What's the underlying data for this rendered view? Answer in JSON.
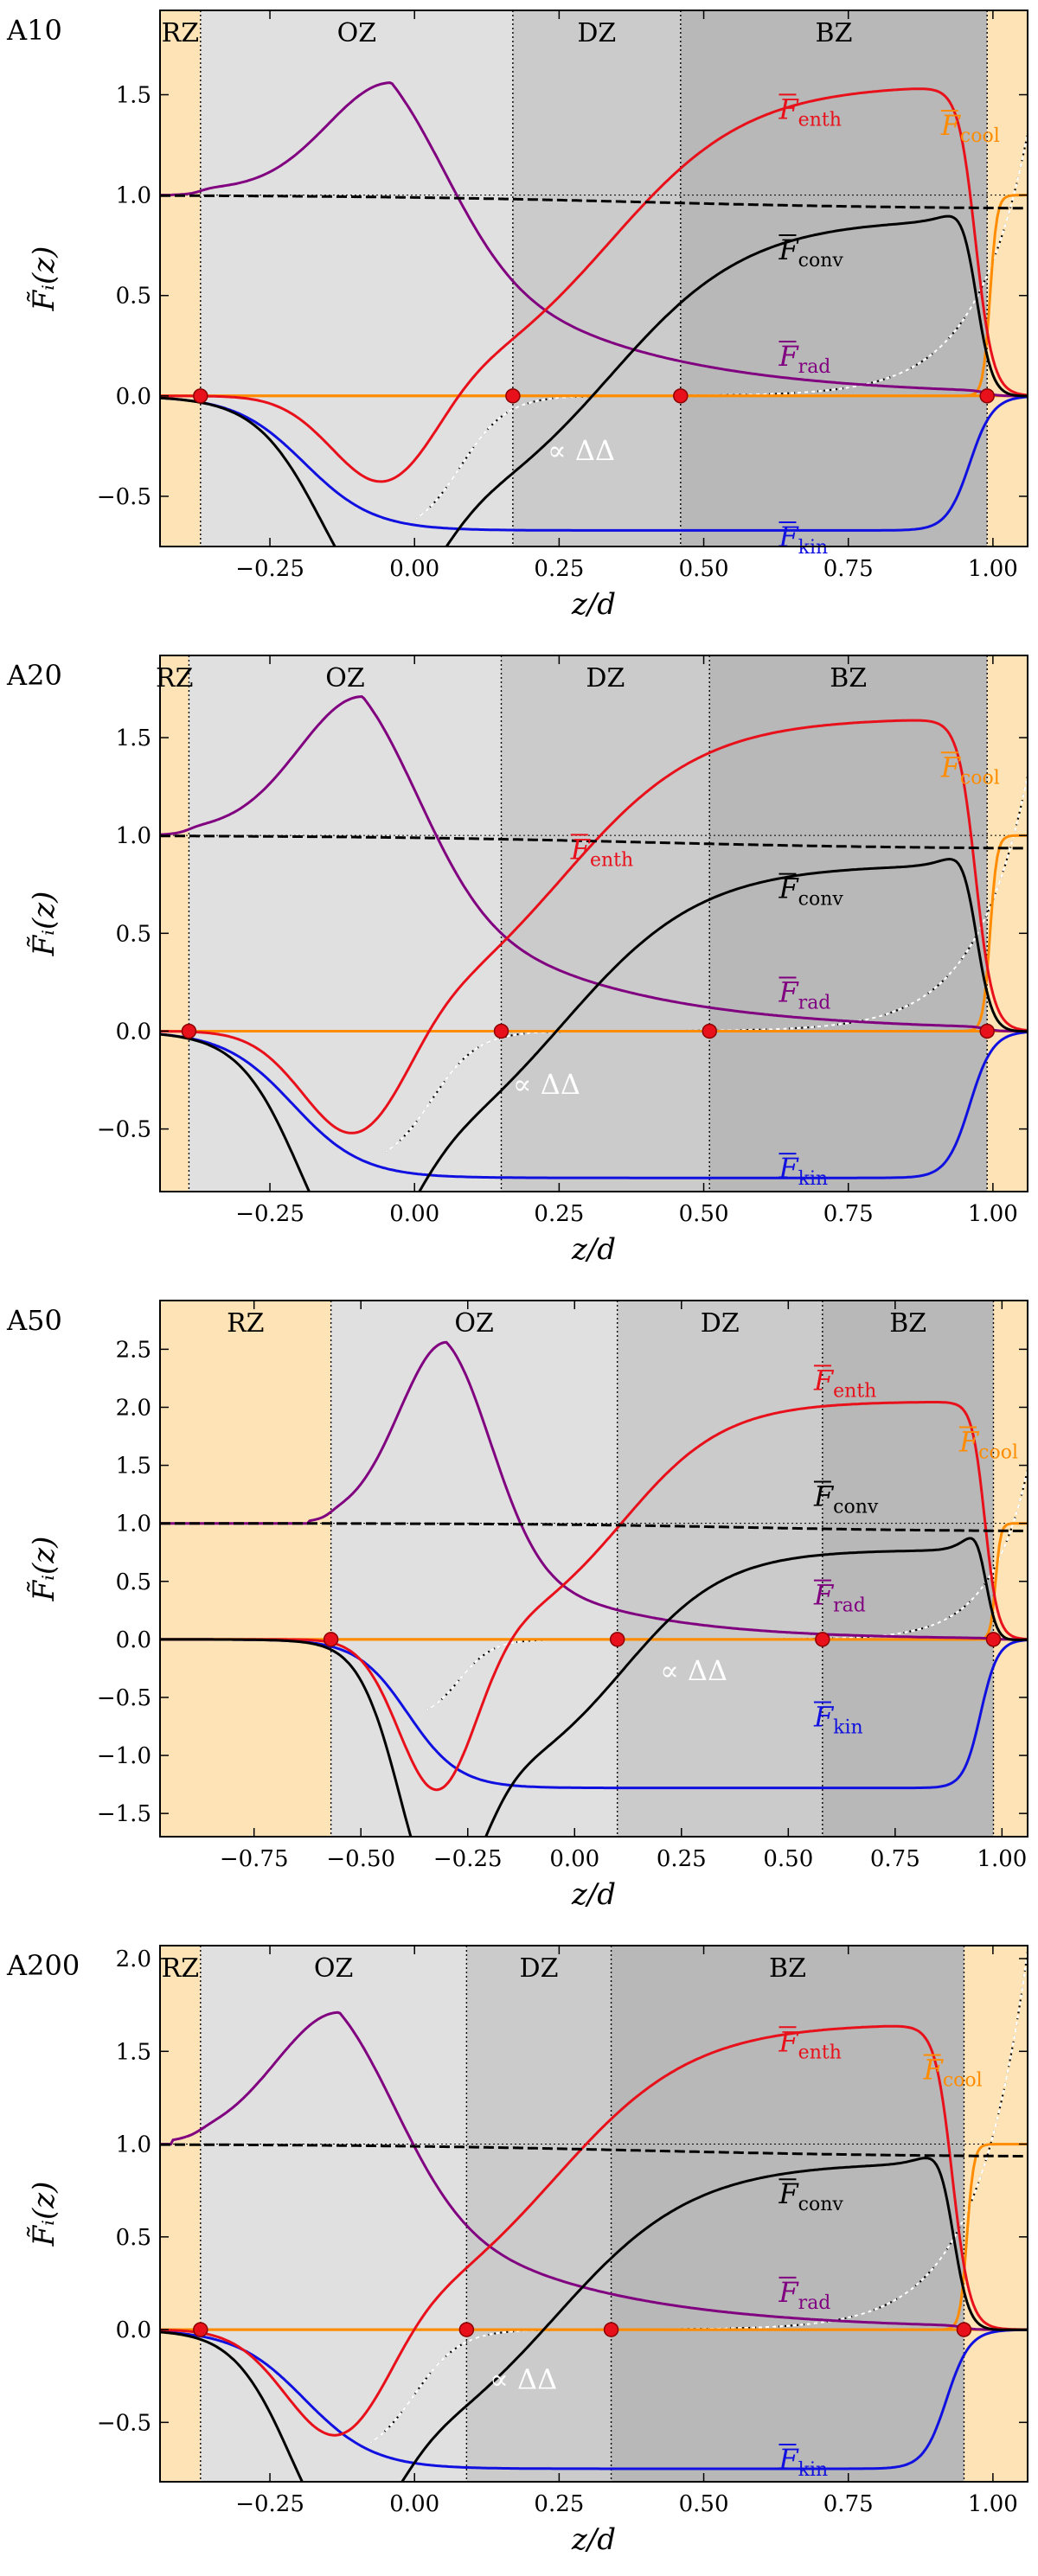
{
  "figure": {
    "ylabel": "F̃ᵢ(z)",
    "xlabel": "z/d",
    "colors": {
      "rz": "#fde3b5",
      "oz": "#e0e0e0",
      "dz": "#cbcbcb",
      "bz": "#b8b8b8",
      "rad": "#800080",
      "enth": "#e8101a",
      "conv": "#000000",
      "kin": "#1010e0",
      "cool": "#ff8c00",
      "total": "#000000",
      "nabla": "#ffffff",
      "marker": "#e8101a"
    }
  },
  "chart_data": [
    {
      "type": "line",
      "panel": "A10",
      "xlim": [
        -0.44,
        1.06
      ],
      "ylim": [
        -0.75,
        1.92
      ],
      "xticks": [
        -0.25,
        0.0,
        0.25,
        0.5,
        0.75,
        1.0
      ],
      "xtick_labels": [
        "−0.25",
        "0.00",
        "0.25",
        "0.50",
        "0.75",
        "1.00"
      ],
      "yticks": [
        -0.5,
        0.0,
        0.5,
        1.0,
        1.5
      ],
      "ytick_labels": [
        "−0.5",
        "0.0",
        "0.5",
        "1.0",
        "1.5"
      ],
      "zones": [
        {
          "name": "RZ",
          "from": -0.44,
          "to": -0.37
        },
        {
          "name": "OZ",
          "from": -0.37,
          "to": 0.17
        },
        {
          "name": "DZ",
          "from": 0.17,
          "to": 0.46
        },
        {
          "name": "BZ",
          "from": 0.46,
          "to": 0.99
        },
        {
          "name": "",
          "from": 0.99,
          "to": 1.06
        }
      ],
      "markers_x": [
        -0.37,
        0.17,
        0.46,
        0.99
      ],
      "flux_labels": [
        {
          "text": "F",
          "sub": "enth",
          "series": "enth",
          "x": 0.63,
          "y": 1.38
        },
        {
          "text": "F",
          "sub": "cool",
          "series": "cool",
          "x": 0.91,
          "y": 1.3
        },
        {
          "text": "F",
          "sub": "conv",
          "series": "conv",
          "x": 0.63,
          "y": 0.68
        },
        {
          "text": "F",
          "sub": "rad",
          "series": "rad",
          "x": 0.63,
          "y": 0.15
        },
        {
          "text": "∝ ΔΔ",
          "sub": "",
          "series": "nabla",
          "x": 0.23,
          "y": -0.32
        },
        {
          "text": "F",
          "sub": "kin",
          "series": "kin",
          "x": 0.63,
          "y": -0.75
        }
      ],
      "params": {
        "rad_peak": 1.56,
        "rad_x": -0.04,
        "rad_base": 1.03,
        "enth_peak": 1.55,
        "enth_x": 0.78,
        "neg_min": -0.45,
        "neg_x": -0.05,
        "conv_min": -0.55,
        "kin_min": -0.67,
        "kin_x": 0.64,
        "enth_zero": 0.1,
        "nabla_start": 0.0
      }
    },
    {
      "type": "line",
      "panel": "A20",
      "xlim": [
        -0.44,
        1.06
      ],
      "ylim": [
        -0.82,
        1.92
      ],
      "xticks": [
        -0.25,
        0.0,
        0.25,
        0.5,
        0.75,
        1.0
      ],
      "xtick_labels": [
        "−0.25",
        "0.00",
        "0.25",
        "0.50",
        "0.75",
        "1.00"
      ],
      "yticks": [
        -0.5,
        0.0,
        0.5,
        1.0,
        1.5
      ],
      "ytick_labels": [
        "−0.5",
        "0.0",
        "0.5",
        "1.0",
        "1.5"
      ],
      "zones": [
        {
          "name": "RZ",
          "from": -0.44,
          "to": -0.39
        },
        {
          "name": "OZ",
          "from": -0.39,
          "to": 0.15
        },
        {
          "name": "DZ",
          "from": 0.15,
          "to": 0.51
        },
        {
          "name": "BZ",
          "from": 0.51,
          "to": 0.99
        },
        {
          "name": "",
          "from": 0.99,
          "to": 1.06
        }
      ],
      "markers_x": [
        -0.39,
        0.15,
        0.51,
        0.99
      ],
      "flux_labels": [
        {
          "text": "F",
          "sub": "cool",
          "series": "cool",
          "x": 0.91,
          "y": 1.3
        },
        {
          "text": "F",
          "sub": "enth",
          "series": "enth",
          "x": 0.27,
          "y": 0.88
        },
        {
          "text": "F",
          "sub": "conv",
          "series": "conv",
          "x": 0.63,
          "y": 0.68
        },
        {
          "text": "F",
          "sub": "rad",
          "series": "rad",
          "x": 0.63,
          "y": 0.15
        },
        {
          "text": "∝ ΔΔ",
          "sub": "",
          "series": "nabla",
          "x": 0.17,
          "y": -0.32
        },
        {
          "text": "F",
          "sub": "kin",
          "series": "kin",
          "x": 0.63,
          "y": -0.75
        }
      ],
      "params": {
        "rad_peak": 1.71,
        "rad_x": -0.09,
        "rad_base": 1.03,
        "enth_peak": 1.6,
        "enth_x": 0.67,
        "neg_min": -0.55,
        "neg_x": -0.1,
        "conv_min": -0.68,
        "kin_min": -0.75,
        "kin_x": 0.57,
        "enth_zero": 0.05,
        "nabla_start": -0.05
      }
    },
    {
      "type": "line",
      "panel": "A50",
      "xlim": [
        -0.97,
        1.06
      ],
      "ylim": [
        -1.7,
        2.92
      ],
      "xticks": [
        -0.75,
        -0.5,
        -0.25,
        0.0,
        0.25,
        0.5,
        0.75,
        1.0
      ],
      "xtick_labels": [
        "−0.75",
        "−0.50",
        "−0.25",
        "0.00",
        "0.25",
        "0.50",
        "0.75",
        "1.00"
      ],
      "yticks": [
        -1.5,
        -1.0,
        -0.5,
        0.0,
        0.5,
        1.0,
        1.5,
        2.0,
        2.5
      ],
      "ytick_labels": [
        "−1.5",
        "−1.0",
        "−0.5",
        "0.0",
        "0.5",
        "1.0",
        "1.5",
        "2.0",
        "2.5"
      ],
      "zones": [
        {
          "name": "RZ",
          "from": -0.97,
          "to": -0.57
        },
        {
          "name": "OZ",
          "from": -0.57,
          "to": 0.1
        },
        {
          "name": "DZ",
          "from": 0.1,
          "to": 0.58
        },
        {
          "name": "BZ",
          "from": 0.58,
          "to": 0.98
        },
        {
          "name": "",
          "from": 0.98,
          "to": 1.06
        }
      ],
      "markers_x": [
        -0.57,
        0.1,
        0.58,
        0.98
      ],
      "flux_labels": [
        {
          "text": "F",
          "sub": "enth",
          "series": "enth",
          "x": 0.56,
          "y": 2.15
        },
        {
          "text": "F",
          "sub": "cool",
          "series": "cool",
          "x": 0.9,
          "y": 1.62
        },
        {
          "text": "F",
          "sub": "conv",
          "series": "conv",
          "x": 0.56,
          "y": 1.15
        },
        {
          "text": "F",
          "sub": "rad",
          "series": "rad",
          "x": 0.56,
          "y": 0.3
        },
        {
          "text": "∝ ΔΔ",
          "sub": "",
          "series": "nabla",
          "x": 0.2,
          "y": -0.35
        },
        {
          "text": "F",
          "sub": "kin",
          "series": "kin",
          "x": 0.56,
          "y": -0.75
        }
      ],
      "params": {
        "rad_peak": 2.56,
        "rad_x": -0.3,
        "rad_base": 1.05,
        "enth_peak": 2.05,
        "enth_x": 0.55,
        "neg_min": -1.32,
        "neg_x": -0.32,
        "conv_min": -1.55,
        "kin_min": -1.28,
        "kin_x": 0.38,
        "enth_zero": -0.12,
        "nabla_start": -0.35
      }
    },
    {
      "type": "line",
      "panel": "A200",
      "xlim": [
        -0.44,
        1.06
      ],
      "ylim": [
        -0.82,
        2.07
      ],
      "xticks": [
        -0.25,
        0.0,
        0.25,
        0.5,
        0.75,
        1.0
      ],
      "xtick_labels": [
        "−0.25",
        "0.00",
        "0.25",
        "0.50",
        "0.75",
        "1.00"
      ],
      "yticks": [
        -0.5,
        0.0,
        0.5,
        1.0,
        1.5,
        2.0
      ],
      "ytick_labels": [
        "−0.5",
        "0.0",
        "0.5",
        "1.0",
        "1.5",
        "2.0"
      ],
      "zones": [
        {
          "name": "RZ",
          "from": -0.44,
          "to": -0.37
        },
        {
          "name": "OZ",
          "from": -0.37,
          "to": 0.09
        },
        {
          "name": "DZ",
          "from": 0.09,
          "to": 0.34
        },
        {
          "name": "BZ",
          "from": 0.34,
          "to": 0.95
        },
        {
          "name": "",
          "from": 0.95,
          "to": 1.06
        }
      ],
      "markers_x": [
        -0.37,
        0.09,
        0.34,
        0.95
      ],
      "flux_labels": [
        {
          "text": "F",
          "sub": "enth",
          "series": "enth",
          "x": 0.63,
          "y": 1.5
        },
        {
          "text": "F",
          "sub": "cool",
          "series": "cool",
          "x": 0.88,
          "y": 1.35
        },
        {
          "text": "F",
          "sub": "conv",
          "series": "conv",
          "x": 0.63,
          "y": 0.68
        },
        {
          "text": "F",
          "sub": "rad",
          "series": "rad",
          "x": 0.63,
          "y": 0.15
        },
        {
          "text": "∝ ΔΔ",
          "sub": "",
          "series": "nabla",
          "x": 0.13,
          "y": -0.32
        },
        {
          "text": "F",
          "sub": "kin",
          "series": "kin",
          "x": 0.63,
          "y": -0.75
        }
      ],
      "params": {
        "rad_peak": 1.71,
        "rad_x": -0.13,
        "rad_base": 1.03,
        "enth_peak": 1.65,
        "enth_x": 0.67,
        "neg_min": -0.6,
        "neg_x": -0.13,
        "conv_min": -0.68,
        "kin_min": -0.75,
        "kin_x": 0.57,
        "enth_zero": 0.02,
        "nabla_start": -0.08
      }
    }
  ]
}
